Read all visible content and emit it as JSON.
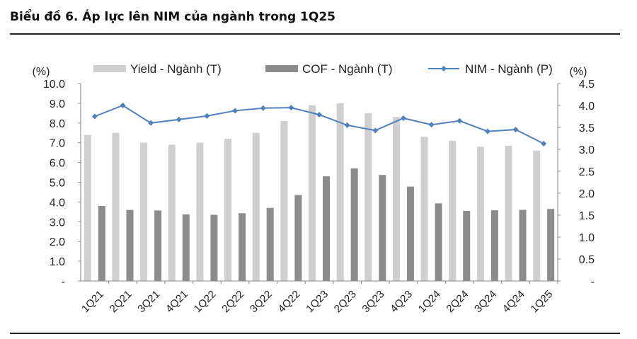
{
  "header": {
    "title": "Biểu đồ 6.  Áp lực lên NIM của ngành trong 1Q25"
  },
  "chart_data": {
    "type": "bar",
    "categories": [
      "1Q21",
      "2Q21",
      "3Q21",
      "4Q21",
      "1Q22",
      "2Q22",
      "3Q22",
      "4Q22",
      "1Q23",
      "2Q23",
      "3Q23",
      "4Q23",
      "1Q24",
      "2Q24",
      "3Q24",
      "4Q24",
      "1Q25"
    ],
    "series": [
      {
        "name": "Yield  - Ngành (T)",
        "type": "bar",
        "axis": "left",
        "color": "#cfcfcf",
        "values": [
          7.4,
          7.5,
          7.0,
          6.9,
          7.0,
          7.2,
          7.5,
          8.1,
          8.9,
          9.0,
          8.5,
          8.3,
          7.3,
          7.1,
          6.8,
          6.85,
          6.6
        ]
      },
      {
        "name": "COF - Ngành (T)",
        "type": "bar",
        "axis": "left",
        "color": "#8c8c8c",
        "values": [
          3.8,
          3.6,
          3.57,
          3.37,
          3.35,
          3.43,
          3.7,
          4.35,
          5.3,
          5.7,
          5.37,
          4.78,
          3.93,
          3.55,
          3.58,
          3.6,
          3.65
        ]
      },
      {
        "name": "NIM - Ngành (P)",
        "type": "line",
        "axis": "right",
        "color": "#4f81bd",
        "values": [
          3.75,
          4.0,
          3.6,
          3.68,
          3.76,
          3.88,
          3.94,
          3.95,
          3.79,
          3.55,
          3.43,
          3.71,
          3.56,
          3.65,
          3.41,
          3.45,
          3.13
        ]
      }
    ],
    "y_left": {
      "label": "(%)",
      "min": 0,
      "max": 10,
      "ticks": [
        "-",
        "1.0",
        "2.0",
        "3.0",
        "4.0",
        "5.0",
        "6.0",
        "7.0",
        "8.0",
        "9.0",
        "10.0"
      ]
    },
    "y_right": {
      "label": "(%)",
      "min": 0,
      "max": 4.5,
      "ticks": [
        "-",
        "0.5",
        "1.0",
        "1.5",
        "2.0",
        "2.5",
        "3.0",
        "3.5",
        "4.0",
        "4.5"
      ]
    },
    "grid": false,
    "legend": "top"
  }
}
